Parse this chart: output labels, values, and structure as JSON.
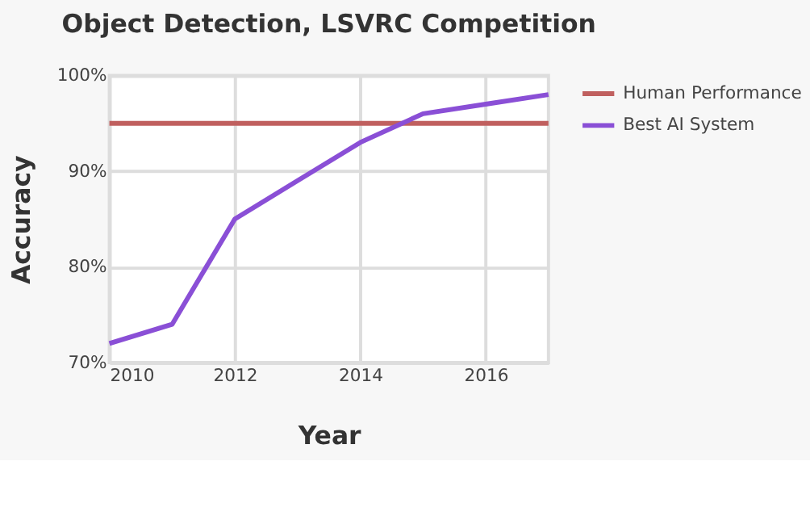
{
  "chart_data": {
    "type": "line",
    "title": "Object Detection, LSVRC Competition",
    "xlabel": "Year",
    "ylabel": "Accuracy",
    "series": [
      {
        "name": "Human Performance",
        "color": "#c0605f",
        "x": [
          2010,
          2017
        ],
        "values": [
          95,
          95
        ]
      },
      {
        "name": "Best AI System",
        "color": "#8a4fd6",
        "x": [
          2010,
          2011,
          2012,
          2013,
          2014,
          2015,
          2016,
          2017
        ],
        "values": [
          72,
          74,
          85,
          89,
          93,
          96,
          97,
          98
        ]
      }
    ],
    "xlim": [
      2010,
      2017
    ],
    "xticks": [
      2010,
      2012,
      2014,
      2016
    ],
    "ylim": [
      70,
      100
    ],
    "yticks": [
      {
        "value": 70,
        "label": "70%"
      },
      {
        "value": 80,
        "label": "80%"
      },
      {
        "value": 90,
        "label": "90%"
      },
      {
        "value": 100,
        "label": "100%"
      }
    ],
    "grid": true,
    "legend": "top right",
    "marker": "none",
    "line_style": "solid"
  }
}
